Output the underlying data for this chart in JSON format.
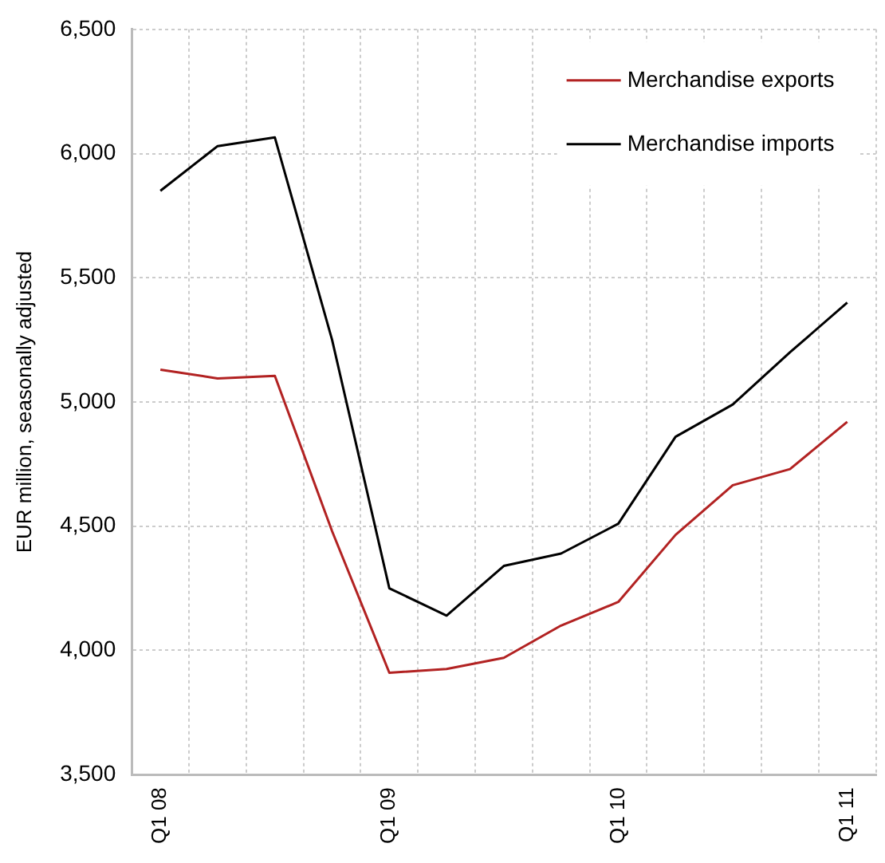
{
  "chart_data": {
    "type": "line",
    "ylabel": "EUR million, seasonally adjusted",
    "categories": [
      "Q1 08",
      null,
      null,
      null,
      "Q1 09",
      null,
      null,
      null,
      "Q1 10",
      null,
      null,
      null,
      "Q1 11"
    ],
    "series": [
      {
        "name": "Merchandise exports",
        "color": "#b22222",
        "values": [
          5130,
          5095,
          5105,
          4480,
          3910,
          3925,
          3970,
          4100,
          4195,
          4465,
          4665,
          4730,
          4920
        ]
      },
      {
        "name": "Merchandise imports",
        "color": "#000000",
        "values": [
          5850,
          6030,
          6065,
          5250,
          4250,
          4140,
          4340,
          4390,
          4510,
          4860,
          4990,
          5200,
          5400
        ]
      }
    ],
    "ylim": [
      3500,
      6500
    ],
    "yticks": [
      {
        "value": 3500,
        "label": "3,500"
      },
      {
        "value": 4000,
        "label": "4,000"
      },
      {
        "value": 4500,
        "label": "4,500"
      },
      {
        "value": 5000,
        "label": "5,000"
      },
      {
        "value": 5500,
        "label": "5,500"
      },
      {
        "value": 6000,
        "label": "6,000"
      },
      {
        "value": 6500,
        "label": "6,500"
      }
    ],
    "grid": true,
    "legend": "top right",
    "marker": "none",
    "line_style": "solid"
  }
}
